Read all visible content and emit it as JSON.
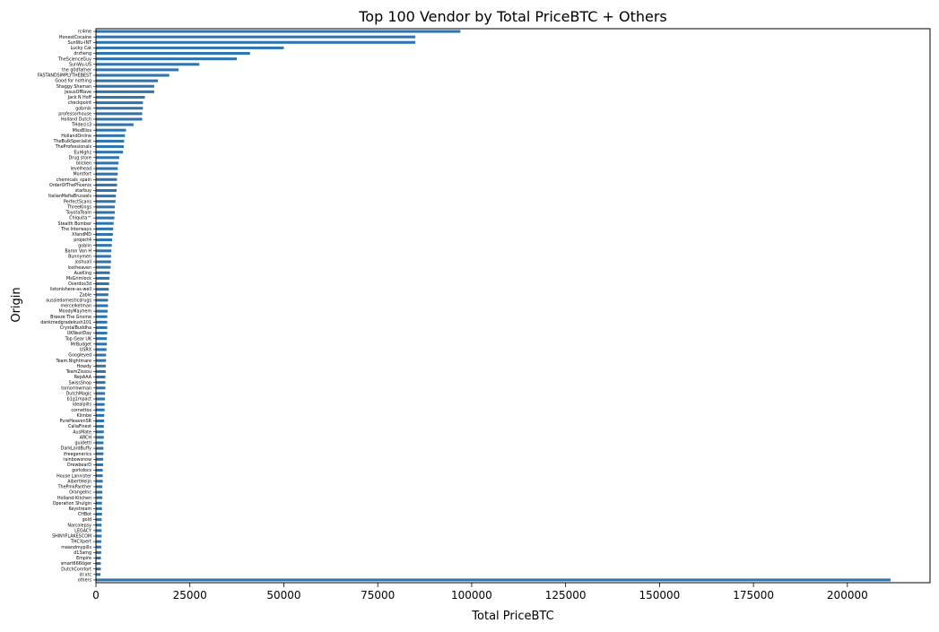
{
  "chart_data": {
    "type": "bar",
    "orientation": "horizontal",
    "title": "Top 100 Vendor by Total PriceBTC + Others",
    "xlabel": "Total PriceBTC",
    "ylabel": "Origin",
    "xlim": [
      0,
      222000
    ],
    "xticks": [
      0,
      25000,
      50000,
      75000,
      100000,
      125000,
      150000,
      175000,
      200000
    ],
    "xtick_labels": [
      "0",
      "25000",
      "50000",
      "75000",
      "100000",
      "125000",
      "150000",
      "175000",
      "200000"
    ],
    "grid": false,
    "legend": "none",
    "bar_color": "#2e75b0",
    "categories": [
      "rc4me",
      "HonestCocaine",
      "SunWu-INT",
      "Lucky Cat",
      "drzheng",
      "TheScienceGuy",
      "SunWu-US",
      "the g0dfather",
      "FASTANDSIMPLYTHEBEST",
      "Good for nothing",
      "Shaggy Shaman",
      "JesusOfRave",
      "Jack N Hoff",
      "checkpoint",
      "gobmik",
      "professorhouse",
      "Holland Dutch",
      "THdecis3",
      "MissBliss",
      "HollandOnline",
      "TheBulkSpecialist",
      "TheProfessionals",
      "EuHighz",
      "Drug.store",
      "blicken",
      "levelhead",
      "Montfort",
      "chemicals_spain",
      "OrderOfThePhoenix",
      "starbuy",
      "ItalianMafiaBrussels",
      "PerfectScans",
      "ThreeKings",
      "ToyotaTeam",
      "Chiquita™",
      "Stealth Bomber",
      "The Interways",
      "XfandMD",
      "project4",
      "goblin",
      "Baron Van H",
      "Bunnymen",
      "joshuali",
      "lostheaven",
      "AusKing",
      "MsGrimlock",
      "Overdos3d",
      "listonishere-as-well",
      "Zable",
      "aussiedomesticdrugs",
      "mercelketman",
      "MoodyMayhem",
      "Breeze The Gnome",
      "dankmedgradekush101",
      "CrystalBuddha",
      "UKNextDay",
      "Top Gear UK",
      "MrBudget",
      "USRX",
      "Googleyed",
      "Team.Nightmare",
      "Howdy",
      "TeamZissou",
      "RepAAA",
      "SwissShop",
      "tomorrowman",
      "DutchMagic",
      "b1g1mpact",
      "idealpills",
      "cornettos",
      "Klimbe",
      "PureHeavenSR",
      "CaliaFinest",
      "AusMate",
      "ARCH",
      "guidetti",
      "DarkLordBuffy",
      "ifreegenerics",
      "rainbowsnow",
      "DrewbearD",
      "gorkdocs",
      "House Lannister",
      "AlbertHeijn",
      "ThePinkPanther",
      "OrangeInc",
      "Holland-Kitchen",
      "Operation Shulgin",
      "Keystream",
      "CHBot",
      "gold",
      "Narcolepsy",
      "LEGACY",
      "SHINYFLAKESCOM",
      "THCXpert",
      "meandmypills",
      "d13amg",
      "Empire",
      "smart666tiger",
      "DutchComfort",
      "dr.xtc",
      "others"
    ],
    "values": [
      97000,
      85000,
      85000,
      50000,
      41000,
      37500,
      27500,
      22000,
      19500,
      16500,
      15500,
      15500,
      13000,
      12500,
      12500,
      12300,
      12300,
      10000,
      8000,
      7700,
      7500,
      7400,
      7200,
      6200,
      6000,
      5800,
      5800,
      5600,
      5600,
      5500,
      5300,
      5200,
      5000,
      5000,
      4900,
      4700,
      4600,
      4500,
      4300,
      4200,
      4100,
      4000,
      4000,
      3900,
      3700,
      3600,
      3500,
      3400,
      3300,
      3200,
      3200,
      3100,
      3000,
      3000,
      3000,
      3000,
      2900,
      2900,
      2800,
      2700,
      2700,
      2600,
      2600,
      2500,
      2500,
      2500,
      2400,
      2400,
      2300,
      2300,
      2200,
      2200,
      2100,
      2100,
      2100,
      2000,
      2000,
      2000,
      1900,
      1900,
      1800,
      1800,
      1800,
      1700,
      1700,
      1700,
      1600,
      1600,
      1600,
      1500,
      1500,
      1500,
      1500,
      1400,
      1400,
      1400,
      1300,
      1300,
      1300,
      1200,
      211500
    ]
  }
}
